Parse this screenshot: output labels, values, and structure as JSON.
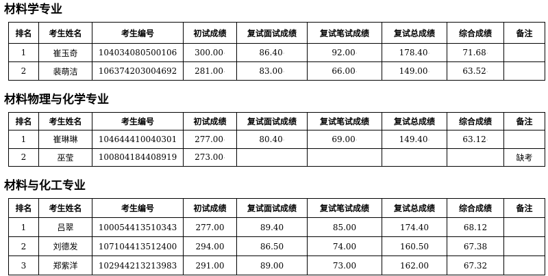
{
  "columns": [
    "排名",
    "考生姓名",
    "考生编号",
    "初试成绩",
    "复试面试成绩",
    "复试笔试成绩",
    "复试总成绩",
    "综合成绩",
    "备注"
  ],
  "sections": [
    {
      "title": "材料学专业",
      "rows": [
        [
          "1",
          "崔玉奇",
          "104034080500106",
          "300.00",
          "86.40",
          "92.00",
          "178.40",
          "71.68",
          ""
        ],
        [
          "2",
          "裴萌洁",
          "106374203004692",
          "281.00",
          "83.00",
          "66.00",
          "149.00",
          "63.52",
          ""
        ]
      ]
    },
    {
      "title": "材料物理与化学专业",
      "rows": [
        [
          "1",
          "崔琳琳",
          "104644410040301",
          "277.00",
          "80.40",
          "69.00",
          "149.40",
          "63.12",
          ""
        ],
        [
          "2",
          "巫莹",
          "100804184408919",
          "273.00",
          "",
          "",
          "",
          "",
          "缺考"
        ]
      ]
    },
    {
      "title": "材料与化工专业",
      "rows": [
        [
          "1",
          "吕翠",
          "100054413510343",
          "277.00",
          "89.40",
          "85.00",
          "174.40",
          "68.12",
          ""
        ],
        [
          "2",
          "刘德发",
          "107104413512400",
          "294.00",
          "86.50",
          "74.00",
          "160.50",
          "67.38",
          ""
        ],
        [
          "3",
          "郑紫洋",
          "102944213213983",
          "291.00",
          "89.00",
          "73.00",
          "162.00",
          "67.32",
          ""
        ]
      ]
    }
  ]
}
